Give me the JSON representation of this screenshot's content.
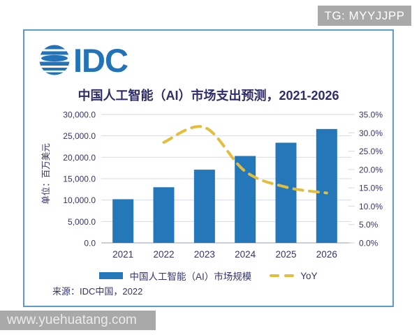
{
  "banner": {
    "text": "TG: MYYJJPP",
    "bg": "#a9a9a9",
    "text_color": "#ffffff"
  },
  "watermark": {
    "text": "www.yuehuatang.com",
    "bg": "#a9a9a9",
    "text_color": "#ebebeb"
  },
  "card": {
    "border_color": "#5d9bcf",
    "bg": "#ffffff"
  },
  "logo": {
    "text": "IDC",
    "color": "#2273b8"
  },
  "source": "来源：IDC中国，2022",
  "legend": [
    {
      "label": "中国人工智能（AI）市场规模",
      "swatch": "bar",
      "color": "#2478b9"
    },
    {
      "label": "YoY",
      "swatch": "dashes",
      "color": "#e3bd3c"
    }
  ],
  "chart_data": {
    "type": "bar",
    "combo": "bar+line",
    "title": "中国人工智能（AI）市场支出预测，2021-2026",
    "categories": [
      "2021",
      "2022",
      "2023",
      "2024",
      "2025",
      "2026"
    ],
    "series": [
      {
        "name": "中国人工智能（AI）市场规模",
        "type": "bar",
        "axis": "left",
        "color": "#2478b9",
        "values": [
          10200,
          13000,
          17100,
          20300,
          23400,
          26600
        ]
      },
      {
        "name": "YoY",
        "type": "line",
        "style": "dashed",
        "axis": "right",
        "color": "#e3bd3c",
        "unit": "%",
        "values": [
          null,
          27.4,
          31.5,
          19.5,
          15.2,
          13.6
        ]
      }
    ],
    "left_axis": {
      "title": "单位：百万美元",
      "min": 0,
      "max": 30000,
      "tick_values": [
        0,
        5000,
        10000,
        15000,
        20000,
        25000,
        30000
      ],
      "tick_labels": [
        "0.0",
        "5,000.0",
        "10,000.0",
        "15,000.0",
        "20,000.0",
        "25,000.0",
        "30,000.0"
      ]
    },
    "right_axis": {
      "min": 0,
      "max": 35,
      "tick_values": [
        0,
        5,
        10,
        15,
        20,
        25,
        30,
        35
      ],
      "tick_labels": [
        "0.0%",
        "5.0%",
        "10.0%",
        "15.0%",
        "20.0%",
        "25.0%",
        "30.0%",
        "35.0%"
      ]
    },
    "grid": true,
    "legend_position": "bottom",
    "text_color": "#34346e",
    "grid_color": "#d9d9e2",
    "axis_line_color": "#b7bdd0"
  }
}
